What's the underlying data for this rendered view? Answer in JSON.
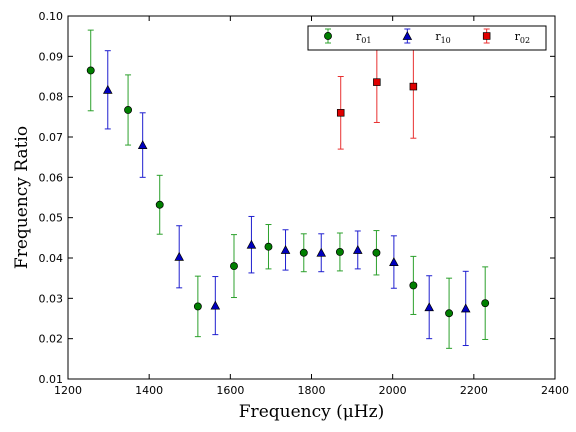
{
  "chart_data": {
    "type": "scatter",
    "xlabel": "Frequency  (μHz)",
    "ylabel": "Frequency Ratio",
    "xlim": [
      1200,
      2400
    ],
    "ylim": [
      0.01,
      0.1
    ],
    "x_ticks": [
      1200,
      1400,
      1600,
      1800,
      2000,
      2200,
      2400
    ],
    "y_ticks": [
      0.01,
      0.02,
      0.03,
      0.04,
      0.05,
      0.06,
      0.07,
      0.08,
      0.09,
      0.1
    ],
    "x_tick_labels": [
      "1200",
      "1400",
      "1600",
      "1800",
      "2000",
      "2200",
      "2400"
    ],
    "y_tick_labels": [
      "0.01",
      "0.02",
      "0.03",
      "0.04",
      "0.05",
      "0.06",
      "0.07",
      "0.08",
      "0.09",
      "0.10"
    ],
    "grid": false,
    "legend_position": "top-right",
    "error_bars": true,
    "series": [
      {
        "name": "r01",
        "name_base": "r",
        "name_sub": "01",
        "marker": "circle",
        "color": "#2ca02c",
        "fill": "#007f00",
        "points": [
          {
            "x": 1256,
            "y": 0.0865,
            "err": 0.01
          },
          {
            "x": 1348,
            "y": 0.0767,
            "err": 0.0087
          },
          {
            "x": 1426,
            "y": 0.0532,
            "err": 0.0073
          },
          {
            "x": 1520,
            "y": 0.028,
            "err": 0.0075
          },
          {
            "x": 1609,
            "y": 0.038,
            "err": 0.0078
          },
          {
            "x": 1694,
            "y": 0.0428,
            "err": 0.0055
          },
          {
            "x": 1781,
            "y": 0.0413,
            "err": 0.0047
          },
          {
            "x": 1870,
            "y": 0.0415,
            "err": 0.0047
          },
          {
            "x": 1960,
            "y": 0.0413,
            "err": 0.0055
          },
          {
            "x": 2051,
            "y": 0.0332,
            "err": 0.0072
          },
          {
            "x": 2139,
            "y": 0.0263,
            "err": 0.0087
          },
          {
            "x": 2228,
            "y": 0.0288,
            "err": 0.009
          }
        ]
      },
      {
        "name": "r10",
        "name_base": "r",
        "name_sub": "10",
        "marker": "triangle",
        "color": "#1f1fcf",
        "fill": "#0000bf",
        "points": [
          {
            "x": 1298,
            "y": 0.0817,
            "err": 0.0097
          },
          {
            "x": 1384,
            "y": 0.068,
            "err": 0.008
          },
          {
            "x": 1474,
            "y": 0.0403,
            "err": 0.0077
          },
          {
            "x": 1563,
            "y": 0.0282,
            "err": 0.0072
          },
          {
            "x": 1652,
            "y": 0.0433,
            "err": 0.007
          },
          {
            "x": 1736,
            "y": 0.042,
            "err": 0.005
          },
          {
            "x": 1824,
            "y": 0.0413,
            "err": 0.0047
          },
          {
            "x": 1914,
            "y": 0.042,
            "err": 0.0047
          },
          {
            "x": 2003,
            "y": 0.039,
            "err": 0.0065
          },
          {
            "x": 2090,
            "y": 0.0278,
            "err": 0.0078
          },
          {
            "x": 2180,
            "y": 0.0275,
            "err": 0.0092
          }
        ]
      },
      {
        "name": "r02",
        "name_base": "r",
        "name_sub": "02",
        "marker": "square",
        "color": "#e83030",
        "fill": "#e00000",
        "points": [
          {
            "x": 1872,
            "y": 0.076,
            "err": 0.009
          },
          {
            "x": 1961,
            "y": 0.0836,
            "err": 0.01
          },
          {
            "x": 2051,
            "y": 0.0825,
            "err": 0.0128
          }
        ]
      }
    ]
  }
}
